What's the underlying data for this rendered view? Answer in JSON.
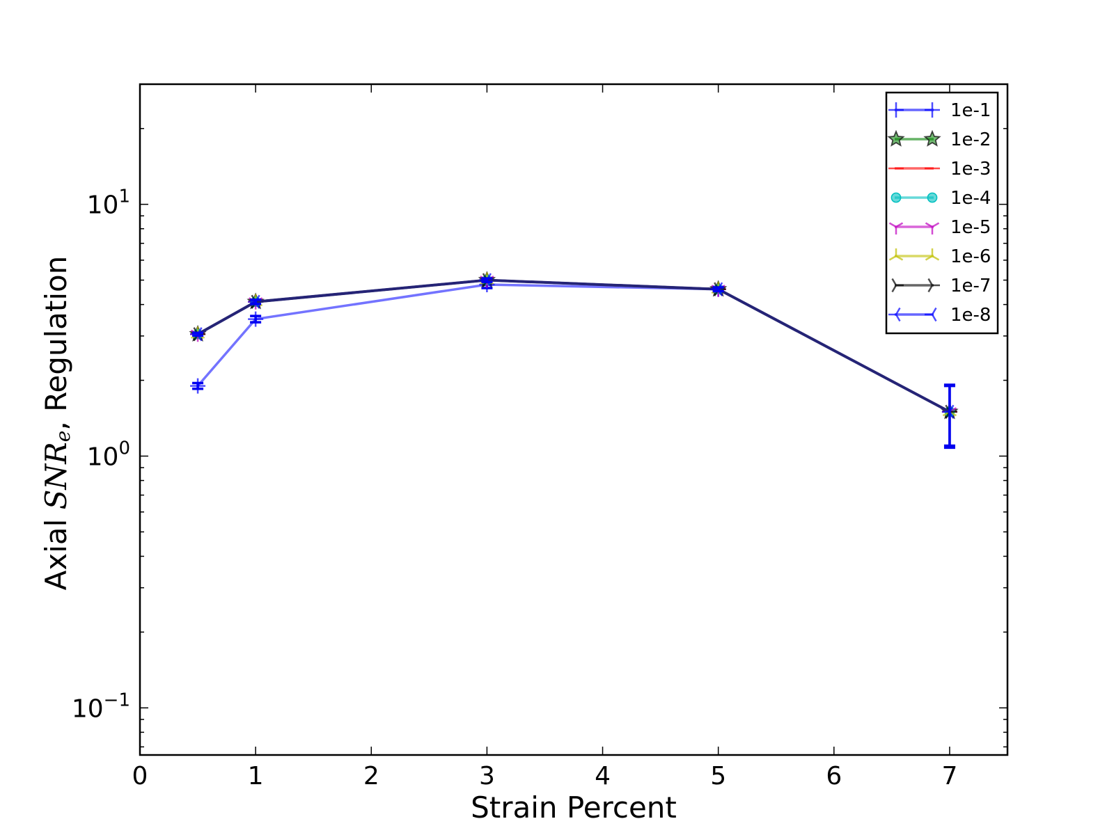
{
  "chart_data": {
    "type": "line",
    "xlabel": "Strain Percent",
    "ylabel_prefix": "Axial ",
    "ylabel_symbol": "SNR",
    "ylabel_subscript": "e",
    "ylabel_suffix": ", Regulation",
    "yscale": "log",
    "xlim": [
      0,
      7.5
    ],
    "ylim": [
      0.065,
      30
    ],
    "x_ticks": [
      0,
      1,
      2,
      3,
      4,
      5,
      6,
      7
    ],
    "y_ticks": [
      {
        "value": 0.1,
        "base": "10",
        "exp": "−1"
      },
      {
        "value": 1,
        "base": "10",
        "exp": "0"
      },
      {
        "value": 10,
        "base": "10",
        "exp": "1"
      }
    ],
    "grid": false,
    "legend_position": "top-right",
    "x": [
      0.5,
      1,
      3,
      5,
      7
    ],
    "series": [
      {
        "name": "1e-1",
        "color": "#0000ff",
        "marker": "plus",
        "values": [
          1.9,
          3.5,
          4.8,
          4.6,
          1.5
        ],
        "errors": [
          0.05,
          0.1,
          0.15,
          0.1,
          0.4
        ]
      },
      {
        "name": "1e-2",
        "color": "#008000",
        "marker": "star",
        "values": [
          3.05,
          4.1,
          5.0,
          4.6,
          1.5
        ]
      },
      {
        "name": "1e-3",
        "color": "#ff0000",
        "marker": "hline",
        "values": [
          3.05,
          4.1,
          5.0,
          4.6,
          1.5
        ]
      },
      {
        "name": "1e-4",
        "color": "#00bfbf",
        "marker": "circle",
        "values": [
          3.05,
          4.1,
          5.0,
          4.6,
          1.5
        ]
      },
      {
        "name": "1e-5",
        "color": "#bf00bf",
        "marker": "tri_down",
        "values": [
          3.05,
          4.1,
          5.0,
          4.6,
          1.5
        ]
      },
      {
        "name": "1e-6",
        "color": "#bfbf00",
        "marker": "tri_up",
        "values": [
          3.05,
          4.1,
          5.0,
          4.6,
          1.5
        ]
      },
      {
        "name": "1e-7",
        "color": "#000000",
        "marker": "tri_right",
        "values": [
          3.05,
          4.1,
          5.0,
          4.6,
          1.5
        ]
      },
      {
        "name": "1e-8",
        "color": "#0000ff",
        "marker": "tri_left",
        "values": [
          3.05,
          4.1,
          5.0,
          4.6,
          1.5
        ],
        "errors": [
          0.04,
          0.08,
          0.08,
          0.08,
          0.42
        ]
      }
    ]
  }
}
